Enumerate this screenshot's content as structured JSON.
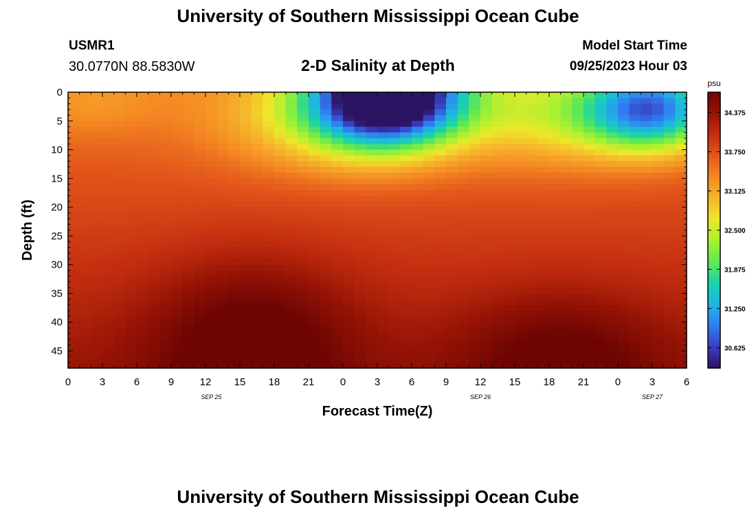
{
  "header": {
    "title": "University of Southern Mississippi Ocean Cube",
    "station_id": "USMR1",
    "coordinates": "30.0770N  88.5830W",
    "subtitle": "2-D Salinity at Depth",
    "model_start_label": "Model Start Time",
    "model_start_value": "09/25/2023 Hour 03"
  },
  "footer": {
    "title": "University of Southern Mississippi Ocean Cube"
  },
  "chart_data": {
    "type": "heatmap",
    "title": "2-D Salinity at Depth",
    "xlabel": "Forecast Time(Z)",
    "ylabel": "Depth (ft)",
    "x_tick_labels": [
      "0",
      "3",
      "6",
      "9",
      "12",
      "15",
      "18",
      "21",
      "0",
      "3",
      "6",
      "9",
      "12",
      "15",
      "18",
      "21",
      "0",
      "3",
      "6"
    ],
    "x_range_hours": [
      0,
      54
    ],
    "date_labels": [
      {
        "text": "SEP 25",
        "hour": 12.5
      },
      {
        "text": "SEP 26",
        "hour": 36.0
      },
      {
        "text": "SEP 27",
        "hour": 51.0
      }
    ],
    "y_ticks": [
      0,
      5,
      10,
      15,
      20,
      25,
      30,
      35,
      40,
      45
    ],
    "y_range": [
      0,
      48
    ],
    "y_inverted": true,
    "colorbar": {
      "unit": "psu",
      "tick_labels": [
        "34.375",
        "33.750",
        "33.125",
        "32.500",
        "31.875",
        "31.250",
        "30.625"
      ],
      "range": [
        30.3,
        34.7
      ],
      "colors": [
        "#2b1461",
        "#3a3dbf",
        "#2f7ff2",
        "#1fb4e3",
        "#19d4a8",
        "#5ee855",
        "#a8f130",
        "#ede72a",
        "#f6b52c",
        "#f58a23",
        "#e3561b",
        "#c52f10",
        "#951305",
        "#6e0503"
      ]
    },
    "grid": false,
    "cell_hours": 1,
    "cell_depth_ft": 1,
    "salinity_model": {
      "description": "Approximate salinity field (psu) sampled on a 1 h x 1 ft grid",
      "background_surface": 33.45,
      "background_gradient_per_ft": 0.018,
      "features": [
        {
          "hour": 28,
          "depth": 0,
          "amplitude": -3.9,
          "sigma_hour": 4.5,
          "sigma_depth": 6
        },
        {
          "hour": 24,
          "depth": 5,
          "amplitude": -1.0,
          "sigma_hour": 7,
          "sigma_depth": 6
        },
        {
          "hour": 51,
          "depth": 3,
          "amplitude": -2.4,
          "sigma_hour": 4,
          "sigma_depth": 5
        },
        {
          "hour": 43,
          "depth": 4,
          "amplitude": -0.9,
          "sigma_hour": 6,
          "sigma_depth": 6
        },
        {
          "hour": 16,
          "depth": 44,
          "amplitude": 0.75,
          "sigma_hour": 6,
          "sigma_depth": 10
        },
        {
          "hour": 43,
          "depth": 47,
          "amplitude": 0.6,
          "sigma_hour": 6,
          "sigma_depth": 8
        },
        {
          "hour": 2,
          "depth": 2,
          "amplitude": -0.25,
          "sigma_hour": 4,
          "sigma_depth": 4
        }
      ]
    }
  }
}
